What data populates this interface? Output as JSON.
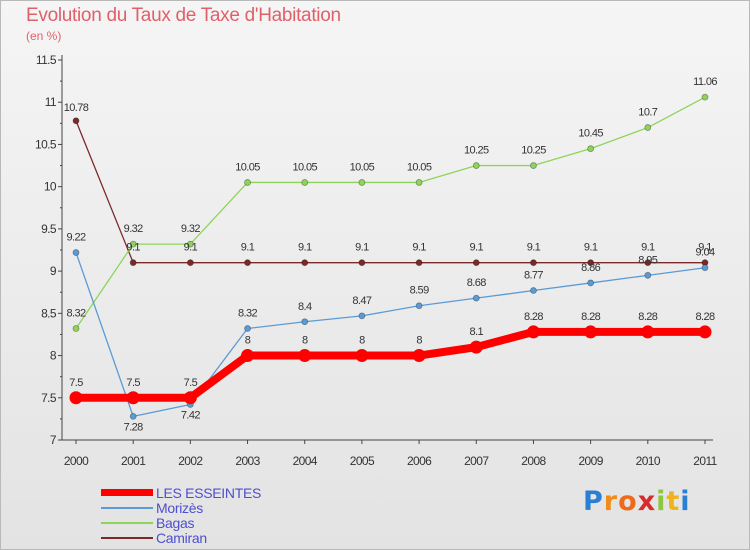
{
  "header": {
    "title": "Evolution du Taux de Taxe d'Habitation",
    "subtitle": "(en %)"
  },
  "logo": {
    "letters": [
      "P",
      "r",
      "o",
      "x",
      "i",
      "t",
      "i"
    ],
    "colors": [
      "#2a7fd4",
      "#f08c1c",
      "#ee6a1a",
      "#d92b2b",
      "#8dc63f",
      "#f0b31c",
      "#2a7fd4"
    ]
  },
  "chart_data": {
    "type": "line",
    "title": "Evolution du Taux de Taxe d'Habitation",
    "ylabel": "(en %)",
    "xlabel": "",
    "x": [
      "2000",
      "2001",
      "2002",
      "2003",
      "2004",
      "2005",
      "2006",
      "2007",
      "2008",
      "2009",
      "2010",
      "2011"
    ],
    "ylim": [
      7,
      11.5
    ],
    "yticks": [
      "7",
      "7.5",
      "8",
      "8.5",
      "9",
      "9.5",
      "10",
      "10.5",
      "11",
      "11.5"
    ],
    "grid": false,
    "legend_position": "bottom-left",
    "series": [
      {
        "name": "LES ESSEINTES",
        "color": "#ff0000",
        "values": [
          7.5,
          7.5,
          7.5,
          8,
          8,
          8,
          8,
          8.1,
          8.28,
          8.28,
          8.28,
          8.28
        ],
        "labels": [
          "7.5",
          "7.5",
          "7.5",
          "8",
          "8",
          "8",
          "8",
          "8.1",
          "8.28",
          "8.28",
          "8.28",
          "8.28"
        ]
      },
      {
        "name": "Morizès",
        "color": "#5b9bd5",
        "values": [
          9.22,
          7.28,
          7.42,
          8.32,
          8.4,
          8.47,
          8.59,
          8.68,
          8.77,
          8.86,
          8.95,
          9.04
        ],
        "labels": [
          "9.22",
          "7.28",
          "7.42",
          "8.32",
          "8.4",
          "8.47",
          "8.59",
          "8.68",
          "8.77",
          "8.86",
          "8.95",
          "9.04"
        ]
      },
      {
        "name": "Bagas",
        "color": "#8fd45a",
        "values": [
          8.32,
          9.32,
          9.32,
          10.05,
          10.05,
          10.05,
          10.05,
          10.25,
          10.25,
          10.45,
          10.7,
          11.06
        ],
        "labels": [
          "8.32",
          "9.32",
          "9.32",
          "10.05",
          "10.05",
          "10.05",
          "10.05",
          "10.25",
          "10.25",
          "10.45",
          "10.7",
          "11.06"
        ]
      },
      {
        "name": "Camiran",
        "color": "#7a2a2a",
        "values": [
          10.78,
          9.1,
          9.1,
          9.1,
          9.1,
          9.1,
          9.1,
          9.1,
          9.1,
          9.1,
          9.1,
          9.1
        ],
        "labels": [
          "10.78",
          "9.1",
          "9.1",
          "9.1",
          "9.1",
          "9.1",
          "9.1",
          "9.1",
          "9.1",
          "9.1",
          "9.1",
          "9.1"
        ]
      }
    ]
  }
}
